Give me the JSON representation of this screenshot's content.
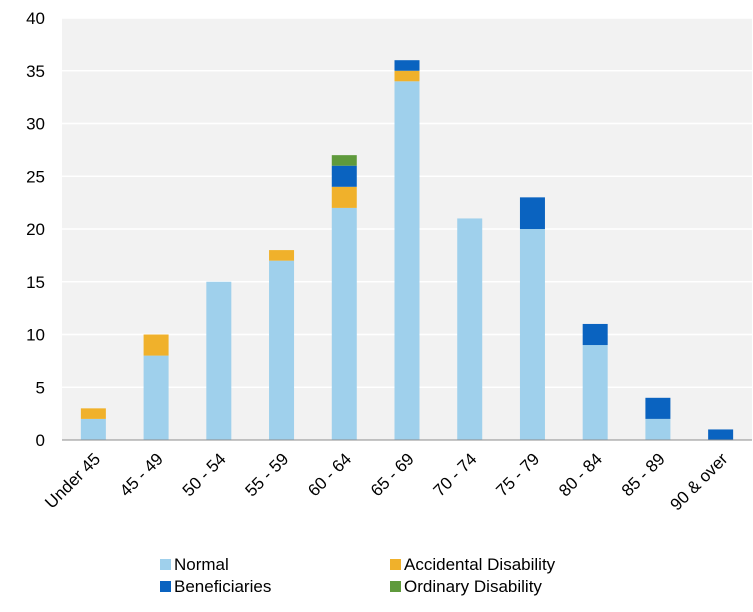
{
  "chart_data": {
    "type": "bar",
    "stacked": true,
    "categories": [
      "Under 45",
      "45 - 49",
      "50 - 54",
      "55 - 59",
      "60 - 64",
      "65 - 69",
      "70 - 74",
      "75 - 79",
      "80 - 84",
      "85 - 89",
      "90 & over"
    ],
    "series": [
      {
        "name": "Normal",
        "color": "#9fd0ec",
        "values": [
          2,
          8,
          15,
          17,
          22,
          34,
          21,
          20,
          9,
          2,
          0
        ]
      },
      {
        "name": "Accidental Disability",
        "color": "#f0b12b",
        "values": [
          1,
          2,
          0,
          1,
          2,
          1,
          0,
          0,
          0,
          0,
          0
        ]
      },
      {
        "name": "Beneficiaries",
        "color": "#0a63c0",
        "values": [
          0,
          0,
          0,
          0,
          2,
          1,
          0,
          3,
          2,
          2,
          1
        ]
      },
      {
        "name": "Ordinary Disability",
        "color": "#5f9a3c",
        "values": [
          0,
          0,
          0,
          0,
          1,
          0,
          0,
          0,
          0,
          0,
          0
        ]
      }
    ],
    "ylim": [
      0,
      40
    ],
    "yticks": [
      0,
      5,
      10,
      15,
      20,
      25,
      30,
      35,
      40
    ],
    "grid": true,
    "plot_background": "#f2f2f2",
    "grid_color": "#ffffff",
    "legend": {
      "placement": "bottom",
      "order": [
        "Normal",
        "Accidental Disability",
        "Beneficiaries",
        "Ordinary Disability"
      ]
    },
    "title": "",
    "xlabel": "",
    "ylabel": ""
  }
}
